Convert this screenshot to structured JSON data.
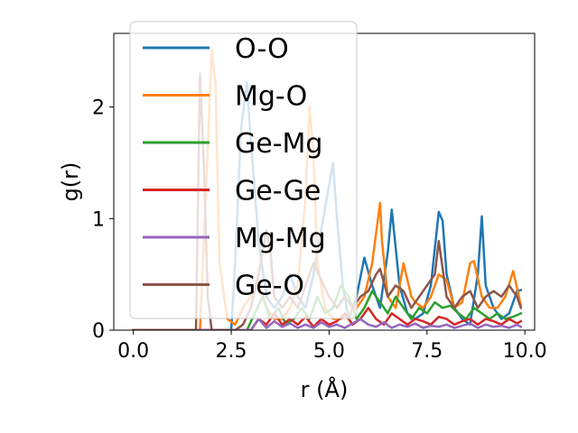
{
  "chart_data": {
    "type": "line",
    "title": "",
    "xlabel": "r (Å)",
    "ylabel": "g(r)",
    "xlim": [
      -0.5,
      10.25
    ],
    "ylim": [
      0,
      2.66
    ],
    "xticks": [
      0.0,
      2.5,
      5.0,
      7.5,
      10.0
    ],
    "xtick_labels": [
      "0.0",
      "2.5",
      "5.0",
      "7.5",
      "10.0"
    ],
    "yticks": [
      0,
      1,
      2
    ],
    "ytick_labels": [
      "0",
      "1",
      "2"
    ],
    "grid": false,
    "legend_position": "top-left",
    "series": [
      {
        "name": "O-O",
        "color": "#1f77b4",
        "x": [
          0.0,
          2.5,
          2.6,
          2.75,
          2.9,
          3.0,
          3.2,
          3.4,
          3.6,
          3.8,
          4.0,
          4.2,
          4.4,
          4.6,
          4.8,
          5.0,
          5.1,
          5.2,
          5.35,
          5.5,
          5.7,
          5.9,
          6.1,
          6.3,
          6.5,
          6.6,
          6.8,
          7.0,
          7.2,
          7.4,
          7.6,
          7.8,
          7.9,
          8.0,
          8.2,
          8.4,
          8.6,
          8.8,
          8.9,
          9.0,
          9.2,
          9.4,
          9.6,
          9.8,
          9.9
        ],
        "values": [
          0.0,
          0.0,
          0.6,
          1.8,
          2.22,
          1.7,
          0.8,
          0.3,
          0.2,
          0.3,
          0.5,
          0.3,
          0.2,
          0.5,
          0.9,
          1.3,
          1.5,
          1.0,
          0.4,
          0.1,
          0.3,
          0.65,
          0.4,
          0.2,
          0.7,
          1.08,
          0.4,
          0.15,
          0.1,
          0.15,
          0.4,
          1.06,
          0.98,
          0.5,
          0.2,
          0.1,
          0.05,
          0.5,
          1.02,
          0.4,
          0.2,
          0.1,
          0.15,
          0.35,
          0.36
        ]
      },
      {
        "name": "Mg-O",
        "color": "#ff7f0e",
        "x": [
          0.0,
          1.7,
          1.85,
          2.0,
          2.1,
          2.2,
          2.4,
          2.6,
          2.8,
          3.0,
          3.2,
          3.4,
          3.6,
          3.8,
          4.0,
          4.2,
          4.4,
          4.5,
          4.6,
          4.7,
          4.9,
          5.1,
          5.3,
          5.5,
          5.7,
          5.9,
          6.1,
          6.3,
          6.35,
          6.5,
          6.7,
          6.9,
          7.1,
          7.2,
          7.4,
          7.6,
          7.8,
          8.0,
          8.2,
          8.4,
          8.6,
          8.7,
          8.9,
          9.1,
          9.3,
          9.5,
          9.7,
          9.9
        ],
        "values": [
          0.0,
          0.0,
          1.2,
          2.52,
          2.2,
          0.6,
          0.1,
          0.05,
          0.2,
          0.3,
          0.45,
          0.2,
          0.1,
          0.1,
          0.2,
          0.4,
          1.2,
          2.0,
          1.6,
          0.6,
          0.2,
          0.1,
          0.1,
          0.15,
          0.2,
          0.3,
          0.6,
          1.14,
          0.8,
          0.3,
          0.2,
          0.6,
          0.3,
          0.25,
          0.2,
          0.3,
          0.5,
          0.45,
          0.2,
          0.25,
          0.6,
          0.62,
          0.3,
          0.2,
          0.2,
          0.3,
          0.53,
          0.22
        ]
      },
      {
        "name": "Ge-Mg",
        "color": "#2ca02c",
        "x": [
          0.0,
          2.9,
          3.1,
          3.3,
          3.5,
          3.7,
          3.9,
          4.1,
          4.3,
          4.5,
          4.7,
          4.9,
          5.1,
          5.3,
          5.5,
          5.7,
          5.9,
          6.1,
          6.3,
          6.5,
          6.7,
          6.9,
          7.1,
          7.3,
          7.5,
          7.7,
          7.9,
          8.1,
          8.3,
          8.5,
          8.7,
          8.9,
          9.1,
          9.3,
          9.5,
          9.7,
          9.9
        ],
        "values": [
          0.0,
          0.0,
          0.15,
          0.3,
          0.1,
          0.2,
          0.05,
          0.1,
          0.2,
          0.1,
          0.3,
          0.15,
          0.2,
          0.4,
          0.3,
          0.1,
          0.2,
          0.35,
          0.25,
          0.15,
          0.3,
          0.2,
          0.1,
          0.2,
          0.15,
          0.25,
          0.2,
          0.22,
          0.15,
          0.1,
          0.2,
          0.15,
          0.1,
          0.15,
          0.1,
          0.12,
          0.15
        ]
      },
      {
        "name": "Ge-Ge",
        "color": "#d62728",
        "x": [
          0.0,
          3.0,
          3.2,
          3.4,
          3.6,
          3.8,
          4.0,
          4.2,
          4.4,
          4.6,
          4.8,
          5.0,
          5.2,
          5.4,
          5.6,
          5.8,
          6.0,
          6.2,
          6.4,
          6.6,
          6.8,
          7.0,
          7.2,
          7.4,
          7.6,
          7.8,
          8.0,
          8.2,
          8.4,
          8.6,
          8.8,
          9.0,
          9.2,
          9.4,
          9.6,
          9.8,
          9.9
        ],
        "values": [
          0.0,
          0.0,
          0.1,
          0.05,
          0.15,
          0.05,
          0.1,
          0.05,
          0.12,
          0.03,
          0.1,
          0.05,
          0.08,
          0.15,
          0.05,
          0.1,
          0.2,
          0.1,
          0.05,
          0.15,
          0.1,
          0.05,
          0.1,
          0.08,
          0.05,
          0.12,
          0.1,
          0.05,
          0.08,
          0.1,
          0.05,
          0.1,
          0.08,
          0.05,
          0.1,
          0.06,
          0.08
        ]
      },
      {
        "name": "Mg-Mg",
        "color": "#9467bd",
        "x": [
          0.0,
          3.0,
          3.2,
          3.4,
          3.6,
          3.8,
          4.0,
          4.2,
          4.4,
          4.6,
          4.8,
          5.0,
          5.2,
          5.4,
          5.6,
          5.8,
          6.0,
          6.2,
          6.4,
          6.6,
          6.8,
          7.0,
          7.2,
          7.4,
          7.6,
          7.8,
          8.0,
          8.2,
          8.4,
          8.6,
          8.8,
          9.0,
          9.2,
          9.4,
          9.6,
          9.8,
          9.9
        ],
        "values": [
          0.0,
          0.0,
          0.1,
          0.02,
          0.08,
          0.03,
          0.06,
          0.02,
          0.05,
          0.02,
          0.07,
          0.03,
          0.05,
          0.02,
          0.06,
          0.1,
          0.05,
          0.03,
          0.07,
          0.02,
          0.05,
          0.03,
          0.06,
          0.02,
          0.04,
          0.03,
          0.05,
          0.02,
          0.04,
          0.06,
          0.02,
          0.05,
          0.03,
          0.04,
          0.02,
          0.05,
          0.03
        ]
      },
      {
        "name": "Ge-O",
        "color": "#8c564b",
        "x": [
          0.0,
          1.6,
          1.7,
          1.8,
          1.9,
          2.0,
          2.2,
          2.4,
          2.6,
          2.8,
          3.0,
          3.2,
          3.4,
          3.5,
          3.6,
          3.8,
          4.0,
          4.2,
          4.4,
          4.6,
          4.8,
          5.0,
          5.2,
          5.4,
          5.6,
          5.8,
          6.0,
          6.2,
          6.3,
          6.5,
          6.7,
          6.9,
          7.1,
          7.3,
          7.5,
          7.7,
          7.8,
          8.0,
          8.2,
          8.4,
          8.6,
          8.8,
          9.0,
          9.2,
          9.4,
          9.6,
          9.8,
          9.9
        ],
        "values": [
          0.0,
          0.0,
          2.3,
          1.5,
          0.3,
          0.0,
          0.0,
          0.0,
          0.0,
          0.05,
          0.2,
          0.5,
          0.9,
          0.7,
          0.3,
          0.2,
          0.3,
          0.2,
          0.4,
          0.6,
          0.45,
          0.3,
          0.2,
          0.3,
          0.2,
          0.3,
          0.35,
          0.5,
          0.55,
          0.3,
          0.4,
          0.35,
          0.2,
          0.3,
          0.4,
          0.5,
          0.8,
          0.3,
          0.2,
          0.3,
          0.35,
          0.2,
          0.3,
          0.35,
          0.3,
          0.4,
          0.3,
          0.2
        ]
      }
    ]
  }
}
